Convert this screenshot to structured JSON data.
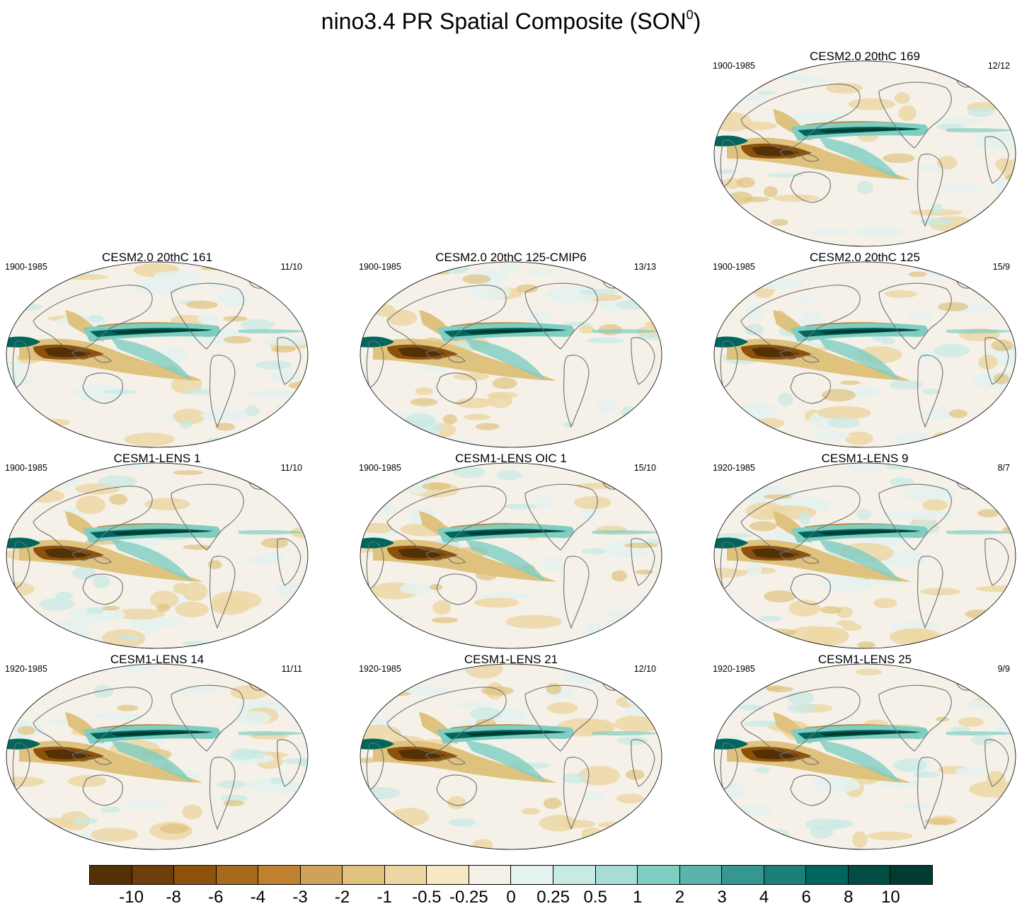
{
  "figure": {
    "title": "nino3.4 PR Spatial Composite (SON",
    "title_superscript": "0",
    "title_close": ")"
  },
  "panels": [
    {
      "id": "p169",
      "title": "CESM2.0 20thC 169",
      "period": "1900-1985",
      "count": "12/12"
    },
    {
      "id": "p161",
      "title": "CESM2.0 20thC 161",
      "period": "1900-1985",
      "count": "11/10"
    },
    {
      "id": "p125c",
      "title": "CESM2.0 20thC 125-CMIP6",
      "period": "1900-1985",
      "count": "13/13"
    },
    {
      "id": "p125",
      "title": "CESM2.0 20thC 125",
      "period": "1900-1985",
      "count": "15/9"
    },
    {
      "id": "l1",
      "title": "CESM1-LENS 1",
      "period": "1900-1985",
      "count": "11/10"
    },
    {
      "id": "loic1",
      "title": "CESM1-LENS OIC 1",
      "period": "1900-1985",
      "count": "15/10"
    },
    {
      "id": "l9",
      "title": "CESM1-LENS 9",
      "period": "1920-1985",
      "count": "8/7"
    },
    {
      "id": "l14",
      "title": "CESM1-LENS 14",
      "period": "1920-1985",
      "count": "11/11"
    },
    {
      "id": "l21",
      "title": "CESM1-LENS 21",
      "period": "1920-1985",
      "count": "12/10"
    },
    {
      "id": "l25",
      "title": "CESM1-LENS 25",
      "period": "1920-1985",
      "count": "9/9"
    }
  ],
  "colorbar": {
    "labels": [
      "-10",
      "-8",
      "-6",
      "-4",
      "-3",
      "-2",
      "-1",
      "-0.5",
      "-0.25",
      "0",
      "0.25",
      "0.5",
      "1",
      "2",
      "3",
      "4",
      "6",
      "8",
      "10"
    ],
    "colors": [
      "#543005",
      "#6e3f0a",
      "#8c510a",
      "#a66a1e",
      "#bf812d",
      "#d0a158",
      "#dfc27d",
      "#ecd7a4",
      "#f6e8c3",
      "#f5f1e8",
      "#e4f2f0",
      "#c7eae5",
      "#a8ddd5",
      "#80cdc1",
      "#5ab4ac",
      "#35978f",
      "#1d7f77",
      "#01665e",
      "#014d44",
      "#003c30"
    ]
  }
}
